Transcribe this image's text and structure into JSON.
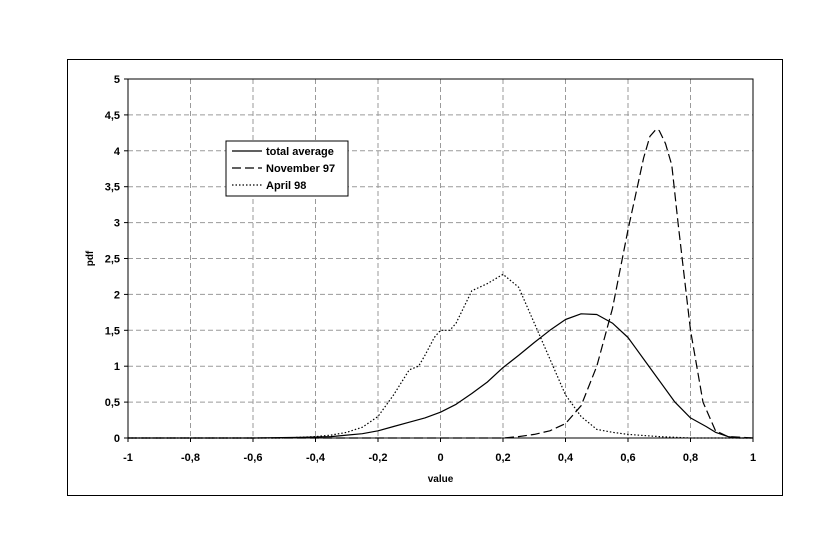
{
  "chart_data": {
    "type": "line",
    "title": "",
    "xlabel": "value",
    "ylabel": "pdf",
    "xlim": [
      -1,
      1
    ],
    "ylim": [
      0,
      5
    ],
    "x_ticks": [
      "-1",
      "-0,8",
      "-0,6",
      "-0,4",
      "-0,2",
      "0",
      "0,2",
      "0,4",
      "0,6",
      "0,8",
      "1"
    ],
    "y_ticks": [
      "0",
      "0,5",
      "1",
      "1,5",
      "2",
      "2,5",
      "3",
      "3,5",
      "4",
      "4,5",
      "5"
    ],
    "grid": true,
    "legend_position": "upper-left",
    "series": [
      {
        "name": "total average",
        "style": "solid",
        "x": [
          -1,
          -0.6,
          -0.45,
          -0.35,
          -0.3,
          -0.25,
          -0.2,
          -0.15,
          -0.1,
          -0.05,
          0,
          0.05,
          0.1,
          0.15,
          0.2,
          0.25,
          0.3,
          0.35,
          0.4,
          0.45,
          0.5,
          0.55,
          0.6,
          0.65,
          0.7,
          0.75,
          0.8,
          0.85,
          0.88,
          0.92,
          0.95,
          1
        ],
        "y": [
          0,
          0,
          0.01,
          0.02,
          0.04,
          0.06,
          0.1,
          0.16,
          0.22,
          0.28,
          0.36,
          0.47,
          0.62,
          0.78,
          0.98,
          1.15,
          1.33,
          1.5,
          1.65,
          1.73,
          1.72,
          1.6,
          1.4,
          1.1,
          0.8,
          0.5,
          0.28,
          0.16,
          0.08,
          0.02,
          0,
          0
        ]
      },
      {
        "name": "November 97",
        "style": "dashed",
        "x": [
          -1,
          0.2,
          0.25,
          0.3,
          0.35,
          0.4,
          0.45,
          0.5,
          0.55,
          0.6,
          0.63,
          0.65,
          0.67,
          0.69,
          0.7,
          0.72,
          0.74,
          0.76,
          0.8,
          0.84,
          0.88,
          0.92,
          1
        ],
        "y": [
          0,
          0,
          0.02,
          0.05,
          0.1,
          0.2,
          0.45,
          1.0,
          1.8,
          2.9,
          3.5,
          3.9,
          4.2,
          4.3,
          4.28,
          4.1,
          3.8,
          3.0,
          1.5,
          0.5,
          0.1,
          0.02,
          0
        ]
      },
      {
        "name": "April 98",
        "style": "dotted",
        "x": [
          -1,
          -0.5,
          -0.4,
          -0.35,
          -0.3,
          -0.25,
          -0.2,
          -0.15,
          -0.1,
          -0.07,
          -0.05,
          -0.02,
          0,
          0.03,
          0.05,
          0.1,
          0.15,
          0.2,
          0.25,
          0.3,
          0.35,
          0.4,
          0.45,
          0.5,
          0.55,
          0.6,
          0.7,
          0.8,
          1
        ],
        "y": [
          0,
          0,
          0.02,
          0.04,
          0.08,
          0.15,
          0.3,
          0.6,
          0.95,
          1.0,
          1.15,
          1.4,
          1.5,
          1.5,
          1.6,
          2.05,
          2.15,
          2.28,
          2.1,
          1.6,
          1.1,
          0.6,
          0.3,
          0.12,
          0.08,
          0.05,
          0.02,
          0,
          0
        ]
      }
    ]
  }
}
